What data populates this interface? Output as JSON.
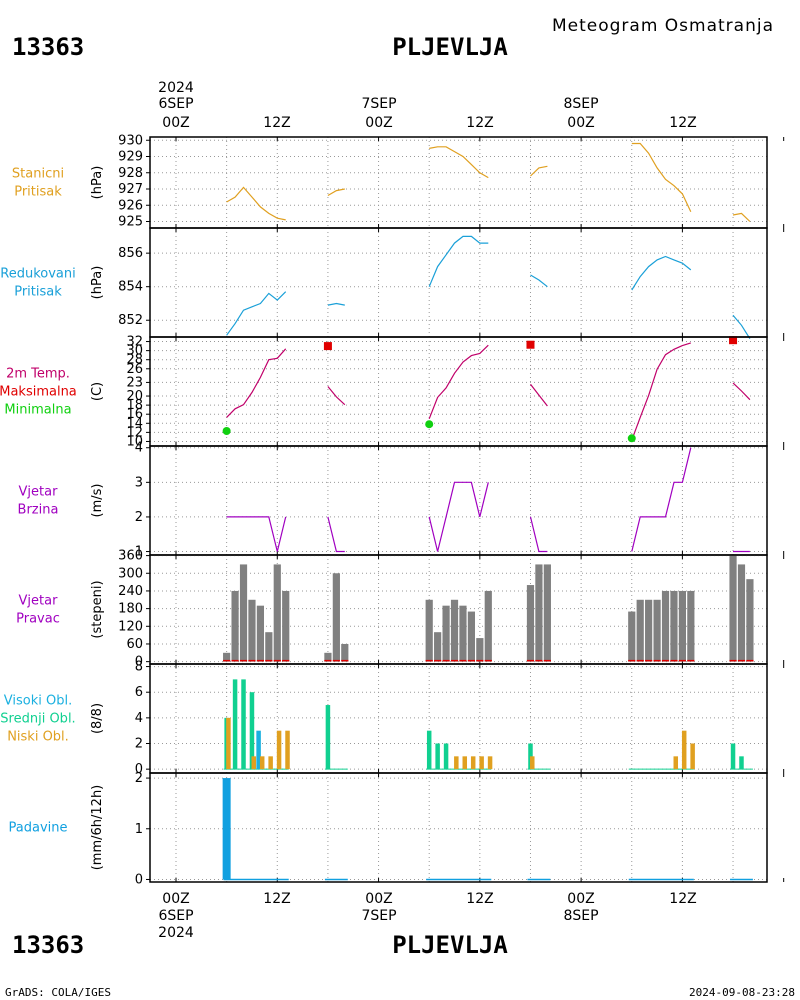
{
  "header": {
    "station_id": "13363",
    "station_name": "PLJEVLJA",
    "subtitle": "Meteogram Osmatranja"
  },
  "footer": {
    "credit": "GrADS: COLA/IGES",
    "timestamp": "2024-09-08-23:28"
  },
  "colors": {
    "pressure": "#e0a020",
    "reduced": "#1aa0d8",
    "tmax": "#e00000",
    "tmin": "#10d010",
    "temp_line": "#c0006a",
    "wind": "#a000c0",
    "winddir": "#808080",
    "cloud_high": "#1ab0e0",
    "cloud_mid": "#10d090",
    "cloud_low": "#e0a020",
    "precip": "#10a0e0"
  },
  "time_axis": {
    "top": {
      "year": "2024",
      "dates": [
        "6SEP",
        "7SEP",
        "8SEP"
      ],
      "hours": [
        "00Z",
        "12Z",
        "00Z",
        "12Z",
        "00Z",
        "12Z"
      ]
    },
    "bottom": {
      "year": "2024",
      "dates": [
        "6SEP",
        "7SEP",
        "8SEP"
      ],
      "hours": [
        "00Z",
        "12Z",
        "00Z",
        "12Z",
        "00Z",
        "12Z"
      ]
    }
  },
  "chart_data": [
    {
      "type": "line",
      "panel": "pressure",
      "label_lines": [
        "Stanicni",
        "Pritisak"
      ],
      "ylabel": "(hPa)",
      "ylim": [
        924.6,
        930.2
      ],
      "yticks": [
        925,
        926,
        927,
        928,
        929,
        930
      ],
      "segments": [
        {
          "x": [
            6,
            7,
            8,
            9,
            10,
            11,
            12,
            13
          ],
          "y": [
            926.2,
            926.5,
            927.1,
            926.5,
            925.9,
            925.5,
            925.2,
            925.1
          ]
        },
        {
          "x": [
            18,
            19,
            20
          ],
          "y": [
            926.6,
            926.9,
            927.0
          ]
        },
        {
          "x": [
            30,
            31,
            32,
            33,
            34,
            35,
            36,
            37
          ],
          "y": [
            929.5,
            929.6,
            929.6,
            929.3,
            929.0,
            928.5,
            928.0,
            927.7
          ]
        },
        {
          "x": [
            42,
            43,
            44
          ],
          "y": [
            927.8,
            928.3,
            928.4
          ]
        },
        {
          "x": [
            54,
            55,
            56,
            57,
            58,
            59,
            60,
            61
          ],
          "y": [
            929.8,
            929.8,
            929.2,
            928.3,
            927.6,
            927.2,
            926.7,
            925.6
          ]
        },
        {
          "x": [
            66,
            67,
            68
          ],
          "y": [
            925.4,
            925.5,
            925.0
          ]
        }
      ]
    },
    {
      "type": "line",
      "panel": "reduced",
      "label_lines": [
        "Redukovani",
        "Pritisak"
      ],
      "ylabel": "(hPa)",
      "ylim": [
        851.0,
        857.5
      ],
      "yticks": [
        852,
        854,
        856
      ],
      "segments": [
        {
          "x": [
            6,
            7,
            8,
            9,
            10,
            11,
            12,
            13
          ],
          "y": [
            851.1,
            851.8,
            852.6,
            852.8,
            853.0,
            853.6,
            853.2,
            853.7
          ]
        },
        {
          "x": [
            18,
            19,
            20
          ],
          "y": [
            852.9,
            853.0,
            852.9
          ]
        },
        {
          "x": [
            30,
            31,
            32,
            33,
            34,
            35,
            36,
            37
          ],
          "y": [
            854.0,
            855.2,
            855.9,
            856.6,
            857.0,
            857.0,
            856.6,
            856.6
          ]
        },
        {
          "x": [
            42,
            43,
            44
          ],
          "y": [
            854.7,
            854.4,
            854.0
          ]
        },
        {
          "x": [
            54,
            55,
            56,
            57,
            58,
            59,
            60,
            61
          ],
          "y": [
            853.8,
            854.6,
            855.2,
            855.6,
            855.8,
            855.6,
            855.4,
            855.0
          ]
        },
        {
          "x": [
            66,
            67,
            68
          ],
          "y": [
            852.3,
            851.7,
            850.9
          ]
        }
      ]
    },
    {
      "type": "line",
      "panel": "temperature",
      "label_lines": [
        "2m Temp.",
        "Maksimalna",
        "Minimalna"
      ],
      "ylabel": "(C)",
      "ylim": [
        9,
        33
      ],
      "yticks": [
        10,
        12,
        14,
        16,
        18,
        20,
        23,
        26,
        28,
        30,
        32
      ],
      "segments": [
        {
          "x": [
            6,
            7,
            8,
            9,
            10,
            11,
            12,
            13
          ],
          "y": [
            15.3,
            17.2,
            18.1,
            20.8,
            24.1,
            28.0,
            28.3,
            30.4
          ]
        },
        {
          "x": [
            18,
            19,
            20
          ],
          "y": [
            22.1,
            19.8,
            18.1
          ]
        },
        {
          "x": [
            30,
            31,
            32,
            33,
            34,
            35,
            36,
            37
          ],
          "y": [
            15.0,
            19.7,
            21.8,
            25.0,
            27.5,
            28.9,
            29.4,
            31.2
          ]
        },
        {
          "x": [
            42,
            43,
            44
          ],
          "y": [
            22.6,
            20.2,
            17.8
          ]
        },
        {
          "x": [
            54,
            55,
            56,
            57,
            58,
            59,
            60,
            61
          ],
          "y": [
            10.3,
            15.3,
            20.1,
            25.9,
            29.1,
            30.3,
            31.1,
            31.7
          ]
        },
        {
          "x": [
            66,
            67,
            68
          ],
          "y": [
            22.9,
            21.1,
            19.2
          ]
        }
      ],
      "max_points": [
        {
          "x": 18,
          "y": 31.0
        },
        {
          "x": 42,
          "y": 31.3
        },
        {
          "x": 66,
          "y": 32.3
        }
      ],
      "min_points": [
        {
          "x": 6,
          "y": 12.3
        },
        {
          "x": 30,
          "y": 13.8
        },
        {
          "x": 54,
          "y": 10.7
        }
      ]
    },
    {
      "type": "line",
      "panel": "wind_speed",
      "label_lines": [
        "Vjetar",
        "Brzina"
      ],
      "ylabel": "(m/s)",
      "ylim": [
        0.9,
        4.05
      ],
      "yticks": [
        1,
        2,
        3,
        4
      ],
      "segments": [
        {
          "x": [
            6,
            7,
            8,
            9,
            10,
            11,
            12,
            13
          ],
          "y": [
            2,
            2,
            2,
            2,
            2,
            2,
            1,
            2
          ]
        },
        {
          "x": [
            18,
            19,
            20
          ],
          "y": [
            2,
            1,
            1
          ]
        },
        {
          "x": [
            30,
            31,
            32,
            33,
            34,
            35,
            36,
            37
          ],
          "y": [
            2,
            1,
            2,
            3,
            3,
            3,
            2,
            3
          ]
        },
        {
          "x": [
            42,
            43,
            44
          ],
          "y": [
            2,
            1,
            1
          ]
        },
        {
          "x": [
            54,
            55,
            56,
            57,
            58,
            59,
            60,
            61
          ],
          "y": [
            1,
            2,
            2,
            2,
            2,
            3,
            3,
            4
          ]
        },
        {
          "x": [
            66,
            67,
            68
          ],
          "y": [
            1,
            1,
            1
          ]
        }
      ]
    },
    {
      "type": "bar",
      "panel": "wind_direction",
      "label_lines": [
        "Vjetar",
        "Pravac"
      ],
      "ylabel": "(stepeni)",
      "ylim": [
        -8,
        362
      ],
      "yticks": [
        0,
        60,
        120,
        180,
        240,
        300,
        360
      ],
      "x": [
        6,
        7,
        8,
        9,
        10,
        11,
        12,
        13,
        18,
        19,
        20,
        30,
        31,
        32,
        33,
        34,
        35,
        36,
        37,
        42,
        43,
        44,
        54,
        55,
        56,
        57,
        58,
        59,
        60,
        61,
        66,
        67,
        68
      ],
      "values": [
        30,
        240,
        330,
        210,
        190,
        100,
        330,
        240,
        30,
        300,
        60,
        210,
        100,
        190,
        210,
        190,
        170,
        80,
        240,
        260,
        330,
        330,
        170,
        210,
        210,
        210,
        240,
        240,
        240,
        240,
        370,
        330,
        280
      ]
    },
    {
      "type": "bar",
      "panel": "clouds",
      "label_lines": [
        "Visoki Obl.",
        "Srednji Obl.",
        "Niski Obl."
      ],
      "ylabel": "(8/8)",
      "ylim": [
        -0.3,
        8.2
      ],
      "yticks": [
        0,
        2,
        4,
        6,
        8
      ],
      "series": [
        {
          "name": "Visoki Obl.",
          "x": [
            10
          ],
          "values": [
            3
          ]
        },
        {
          "name": "Srednji Obl.",
          "x": [
            6,
            7,
            8,
            9,
            18,
            30,
            31,
            32,
            42,
            66,
            67
          ],
          "values": [
            4,
            7,
            7,
            6,
            5,
            3,
            2,
            2,
            2,
            2,
            1
          ]
        },
        {
          "name": "Niski Obl.",
          "x": [
            6,
            9,
            10,
            11,
            12,
            13,
            33,
            34,
            35,
            36,
            37,
            42,
            59,
            60,
            61
          ],
          "values": [
            4,
            1,
            1,
            1,
            3,
            3,
            1,
            1,
            1,
            1,
            1,
            1,
            1,
            3,
            2
          ]
        }
      ]
    },
    {
      "type": "bar",
      "panel": "precipitation",
      "label_lines": [
        "Padavine"
      ],
      "ylabel": "(mm/6h/12h)",
      "ylim": [
        -0.05,
        2.1
      ],
      "yticks": [
        0,
        1,
        2
      ],
      "x": [
        6
      ],
      "values": [
        2
      ]
    }
  ]
}
